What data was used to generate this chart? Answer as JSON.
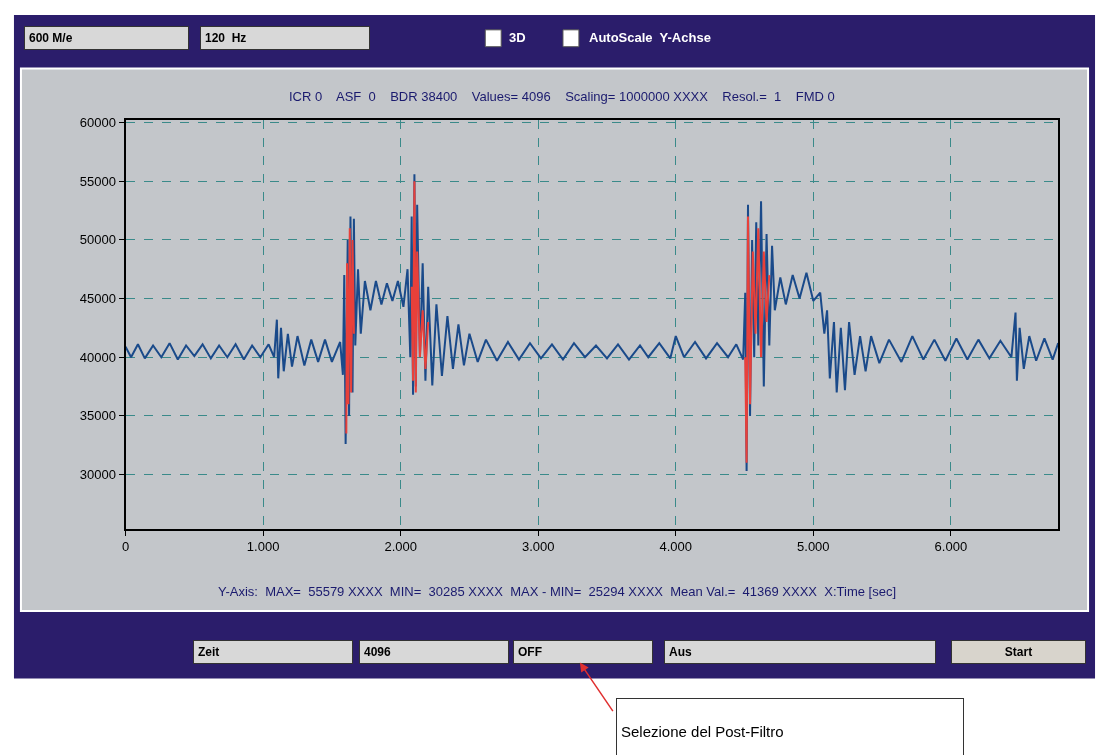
{
  "chart_data": {
    "type": "line",
    "series": [
      {
        "color": "#1a4a8a",
        "x": [
          0,
          40,
          90,
          140,
          200,
          260,
          320,
          380,
          440,
          500,
          560,
          620,
          680,
          740,
          800,
          860,
          920,
          980,
          1040,
          1080,
          1100,
          1110,
          1130,
          1150,
          1180,
          1210,
          1250,
          1300,
          1350,
          1400,
          1450,
          1500,
          1560,
          1580,
          1590,
          1600,
          1615,
          1625,
          1635,
          1650,
          1660,
          1670,
          1690,
          1710,
          1740,
          1780,
          1820,
          1860,
          1900,
          1940,
          1980,
          2020,
          2050,
          2070,
          2080,
          2090,
          2100,
          2110,
          2120,
          2140,
          2160,
          2180,
          2200,
          2230,
          2260,
          2300,
          2340,
          2380,
          2420,
          2460,
          2500,
          2560,
          2620,
          2700,
          2780,
          2860,
          2940,
          3020,
          3100,
          3180,
          3260,
          3340,
          3420,
          3500,
          3580,
          3660,
          3740,
          3800,
          3880,
          3960,
          4000,
          4060,
          4140,
          4220,
          4300,
          4380,
          4440,
          4490,
          4505,
          4515,
          4525,
          4540,
          4555,
          4570,
          4585,
          4600,
          4620,
          4640,
          4660,
          4680,
          4700,
          4720,
          4760,
          4800,
          4850,
          4900,
          4950,
          5000,
          5050,
          5080,
          5100,
          5120,
          5150,
          5170,
          5200,
          5230,
          5260,
          5300,
          5340,
          5380,
          5420,
          5480,
          5550,
          5640,
          5720,
          5800,
          5880,
          5960,
          6040,
          6120,
          6200,
          6280,
          6360,
          6440,
          6470,
          6480,
          6500,
          6530,
          6570,
          6620,
          6680,
          6740,
          6780
        ],
        "values": [
          40900,
          40000,
          41100,
          39900,
          41000,
          40000,
          41200,
          39800,
          41000,
          40100,
          41100,
          39900,
          41000,
          40000,
          41100,
          39800,
          41000,
          40000,
          41100,
          40000,
          43200,
          38200,
          42500,
          38800,
          42000,
          39200,
          41800,
          39300,
          41500,
          39600,
          41500,
          39600,
          41300,
          38500,
          47000,
          32600,
          50000,
          35000,
          52000,
          37000,
          51800,
          41000,
          47500,
          42000,
          46500,
          44000,
          46500,
          44500,
          46300,
          44800,
          46500,
          44300,
          47500,
          40000,
          52000,
          36800,
          55600,
          37500,
          53000,
          40000,
          48000,
          38000,
          46000,
          37600,
          44500,
          38400,
          43500,
          39000,
          42800,
          39300,
          42000,
          39600,
          41500,
          39700,
          41300,
          39800,
          41200,
          39900,
          41100,
          39800,
          41200,
          40000,
          41000,
          39900,
          41100,
          39800,
          41000,
          40000,
          41200,
          39900,
          41800,
          40000,
          41300,
          39900,
          41200,
          40000,
          41100,
          39800,
          45500,
          30300,
          53000,
          35000,
          50000,
          40000,
          51500,
          41000,
          53300,
          37500,
          50500,
          41000,
          49500,
          44000,
          46800,
          44500,
          47000,
          45000,
          47200,
          44800,
          45500,
          42000,
          44000,
          38200,
          43000,
          37000,
          42500,
          37200,
          43000,
          38500,
          41800,
          38800,
          41800,
          39500,
          41500,
          39600,
          41800,
          39800,
          41500,
          39700,
          41600,
          39800,
          41500,
          39900,
          41400,
          40000,
          43800,
          38000,
          42500,
          39000,
          41800,
          39700,
          41600,
          39800,
          41200
        ]
      },
      {
        "color": "#e8403a",
        "x": [
          1605,
          1610,
          1620,
          1630,
          1640,
          1650,
          1660,
          1680,
          2080,
          2090,
          2100,
          2110,
          2120,
          2140,
          2160,
          2180,
          2200,
          2250,
          4505,
          4515,
          4525,
          4540,
          4560,
          4580,
          4600,
          4620,
          4640,
          4660,
          4680
        ],
        "values": [
          33500,
          48000,
          36000,
          51000,
          37000,
          50000,
          42000,
          null,
          46000,
          38000,
          55000,
          37000,
          49000,
          40000,
          44000,
          39000,
          43000,
          null,
          40000,
          31000,
          52000,
          36000,
          49000,
          42000,
          51000,
          40000,
          49000,
          43000,
          47000
        ]
      }
    ],
    "xlim": [
      0,
      6780
    ],
    "ylim": [
      25400,
      60200
    ],
    "xticks": [
      0,
      {
        "value": 1000,
        "label": "1.000"
      },
      {
        "value": 2000,
        "label": "2.000"
      },
      {
        "value": 3000,
        "label": "3.000"
      },
      {
        "value": 4000,
        "label": "4.000"
      },
      {
        "value": 5000,
        "label": "5.000"
      },
      {
        "value": 6000,
        "label": "6.000"
      }
    ],
    "yticks": [
      30000,
      35000,
      40000,
      45000,
      50000,
      55000,
      60000
    ],
    "grid": true,
    "annotations": [
      "600 M/e",
      "120  Hz",
      "3D",
      "AutoScale  Y-Achse",
      "ICR 0    ASF  0    BDR 38400    Values= 4096    Scaling= 1000000 XXXX    Resol.=  1    FMD 0",
      "Y-Axis:  MAX=  55579 XXXX  MIN=  30285 XXXX  MAX - MIN=  25294 XXXX  Mean Val.=  41369 XXXX  X:Time [sec]",
      "Zeit",
      "4096",
      "OFF",
      "Aus",
      "Start",
      "Selezione del Post-Filtro"
    ]
  }
}
